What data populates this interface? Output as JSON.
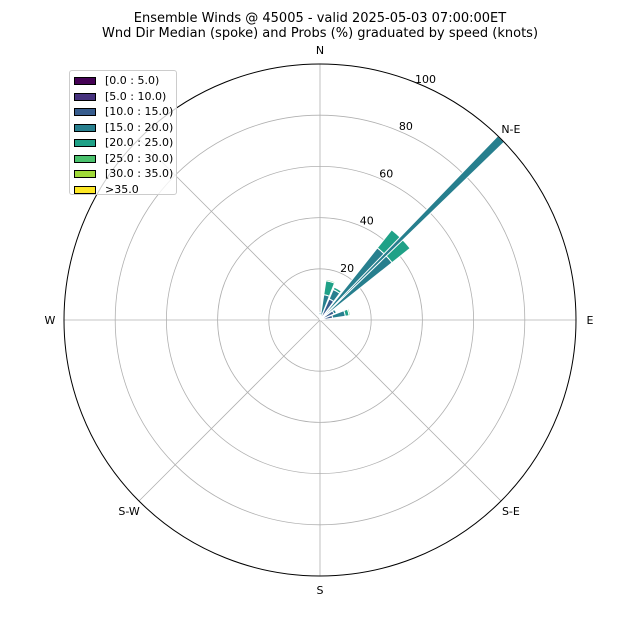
{
  "chart_data": {
    "type": "windrose",
    "title": "Ensemble Winds @ 45005 - valid 2025-05-03 07:00:00ET",
    "subtitle": "Wnd Dir Median (spoke) and Probs (%) graduated by speed (knots)",
    "directions": [
      "N",
      "N-E",
      "E",
      "S-E",
      "S",
      "S-W",
      "W"
    ],
    "radial_ticks": [
      20,
      40,
      60,
      80,
      100
    ],
    "rlim": [
      0,
      100
    ],
    "grid": true,
    "legend_position": "upper-left",
    "speed_bins": [
      {
        "label": "[0.0 : 5.0)",
        "color": "#440154"
      },
      {
        "label": "[5.0 : 10.0)",
        "color": "#46327e"
      },
      {
        "label": "[10.0 : 15.0)",
        "color": "#365c8d"
      },
      {
        "label": "[15.0 : 20.0)",
        "color": "#277f8e"
      },
      {
        "label": "[20.0 : 25.0)",
        "color": "#1fa187"
      },
      {
        "label": "[25.0 : 30.0)",
        "color": "#4ac16d"
      },
      {
        "label": "[30.0 : 35.0)",
        "color": "#a0da39"
      },
      {
        "label": ">35.0",
        "color": "#fde725"
      }
    ],
    "sectors": [
      {
        "direction_deg": 15,
        "cumulative": [
          0,
          0,
          0,
          10,
          15.5,
          16,
          16,
          16
        ]
      },
      {
        "direction_deg": 30,
        "cumulative": [
          0,
          0,
          9,
          13,
          14,
          14,
          14,
          14
        ]
      },
      {
        "direction_deg": 45,
        "cumulative": [
          0,
          0,
          3,
          36,
          45,
          45,
          45,
          45
        ]
      },
      {
        "direction_deg": 60,
        "cumulative": [
          0,
          0,
          6,
          7,
          7,
          7,
          7,
          7
        ]
      },
      {
        "direction_deg": 75,
        "cumulative": [
          0,
          0,
          5,
          10,
          11.5,
          12,
          12,
          12
        ]
      },
      {
        "direction_deg": 0,
        "cumulative": [
          0,
          1,
          2,
          3,
          3,
          3,
          3,
          3
        ]
      }
    ],
    "median_spoke": {
      "direction_deg": 45,
      "value": 100,
      "color": "#277f8e"
    }
  }
}
